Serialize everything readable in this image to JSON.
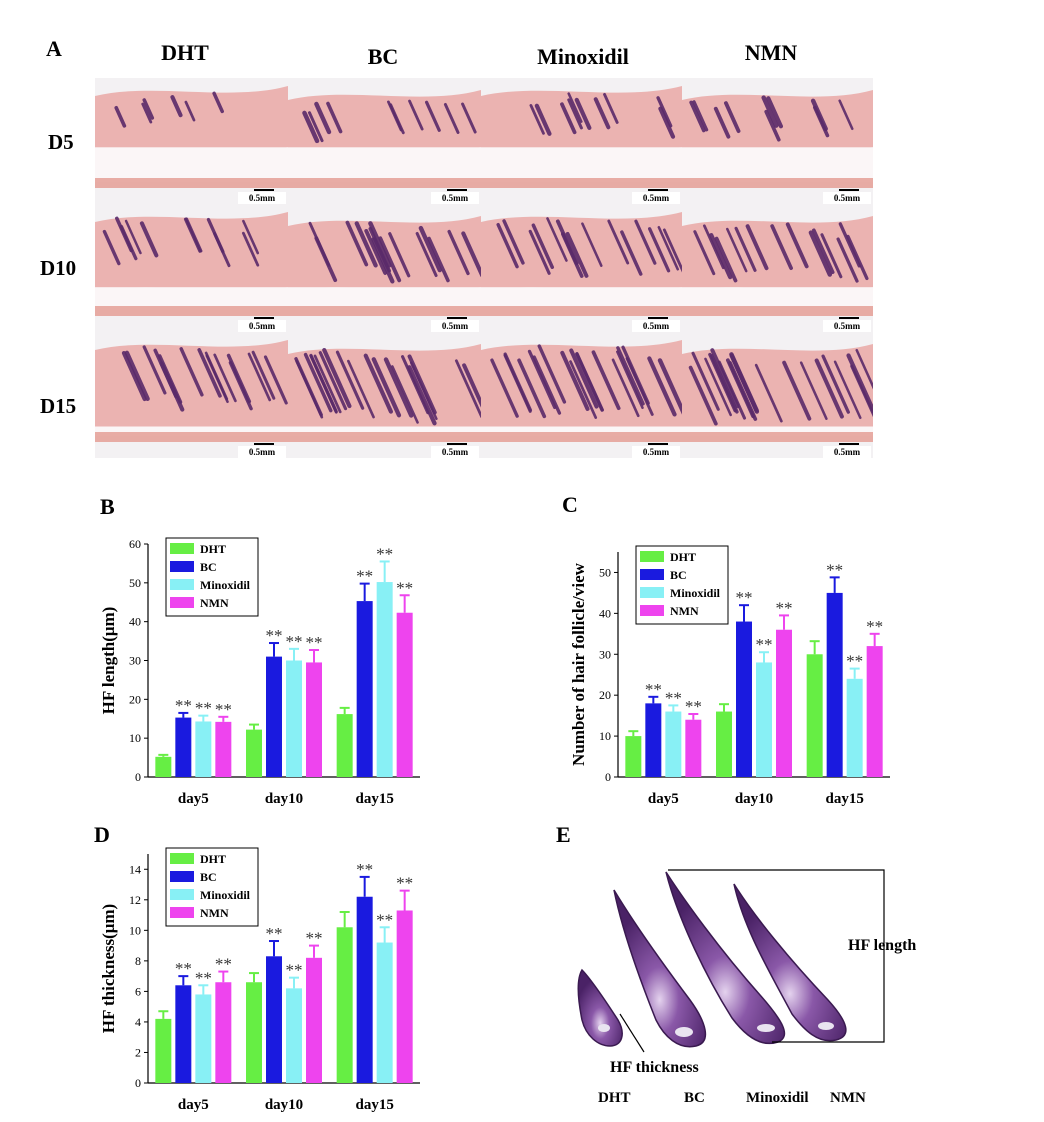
{
  "panel_a": {
    "letter": "A",
    "columns": [
      "DHT",
      "BC",
      "Minoxidil",
      "NMN"
    ],
    "rows": [
      "D5",
      "D10",
      "D15"
    ],
    "scale_bar_label": "0.5mm"
  },
  "colors": {
    "DHT": "#66ee44",
    "BC": "#1a1adf",
    "Minoxidil": "#88f0f5",
    "NMN": "#ee44ee",
    "tissue_pink": "#e9a8a4",
    "follicle_purple": "#5a2a6a"
  },
  "chart_data": [
    {
      "id": "B",
      "type": "bar",
      "ylabel": "HF length(μm)",
      "ylim": [
        0,
        60
      ],
      "yticks": [
        0,
        10,
        20,
        30,
        40,
        50,
        60
      ],
      "categories": [
        "day5",
        "day10",
        "day15"
      ],
      "legend": "top-left",
      "series": [
        {
          "name": "DHT",
          "values": [
            5.2,
            12.2,
            16.2
          ],
          "errors": [
            0.5,
            1.3,
            1.6
          ],
          "sig": [
            "",
            "",
            ""
          ]
        },
        {
          "name": "BC",
          "values": [
            15.3,
            31.0,
            45.3
          ],
          "errors": [
            1.2,
            3.5,
            4.5
          ],
          "sig": [
            "**",
            "**",
            "**"
          ]
        },
        {
          "name": "Minoxidil",
          "values": [
            14.3,
            30.0,
            50.2
          ],
          "errors": [
            1.5,
            3.0,
            5.3
          ],
          "sig": [
            "**",
            "**",
            "**"
          ]
        },
        {
          "name": "NMN",
          "values": [
            14.2,
            29.5,
            42.3
          ],
          "errors": [
            1.3,
            3.2,
            4.5
          ],
          "sig": [
            "**",
            "**",
            "**"
          ]
        }
      ]
    },
    {
      "id": "C",
      "type": "bar",
      "ylabel": "Number of hair follicle/view",
      "ylim": [
        0,
        55
      ],
      "yticks": [
        0,
        10,
        20,
        30,
        40,
        50
      ],
      "categories": [
        "day5",
        "day10",
        "day15"
      ],
      "legend": "top-left",
      "series": [
        {
          "name": "DHT",
          "values": [
            10,
            16,
            30
          ],
          "errors": [
            1.2,
            1.8,
            3.2
          ],
          "sig": [
            "",
            "",
            ""
          ]
        },
        {
          "name": "BC",
          "values": [
            18,
            38,
            45
          ],
          "errors": [
            1.6,
            4.0,
            3.8
          ],
          "sig": [
            "**",
            "**",
            "**"
          ]
        },
        {
          "name": "Minoxidil",
          "values": [
            16,
            28,
            24
          ],
          "errors": [
            1.5,
            2.5,
            2.5
          ],
          "sig": [
            "**",
            "**",
            "**"
          ]
        },
        {
          "name": "NMN",
          "values": [
            14,
            36,
            32
          ],
          "errors": [
            1.4,
            3.5,
            3.0
          ],
          "sig": [
            "**",
            "**",
            "**"
          ]
        }
      ]
    },
    {
      "id": "D",
      "type": "bar",
      "ylabel": "HF thickness(μm)",
      "ylim": [
        0,
        15
      ],
      "yticks": [
        0,
        2,
        4,
        6,
        8,
        10,
        12,
        14
      ],
      "categories": [
        "day5",
        "day10",
        "day15"
      ],
      "legend": "top-left",
      "series": [
        {
          "name": "DHT",
          "values": [
            4.2,
            6.6,
            10.2
          ],
          "errors": [
            0.5,
            0.6,
            1.0
          ],
          "sig": [
            "",
            "",
            ""
          ]
        },
        {
          "name": "BC",
          "values": [
            6.4,
            8.3,
            12.2
          ],
          "errors": [
            0.6,
            1.0,
            1.3
          ],
          "sig": [
            "**",
            "**",
            "**"
          ]
        },
        {
          "name": "Minoxidil",
          "values": [
            5.8,
            6.2,
            9.2
          ],
          "errors": [
            0.6,
            0.7,
            1.0
          ],
          "sig": [
            "**",
            "**",
            "**"
          ]
        },
        {
          "name": "NMN",
          "values": [
            6.6,
            8.2,
            11.3
          ],
          "errors": [
            0.7,
            0.8,
            1.3
          ],
          "sig": [
            "**",
            "**",
            "**"
          ]
        }
      ]
    }
  ],
  "panel_e": {
    "letter": "E",
    "length_label": "HF length",
    "thickness_label": "HF thickness",
    "labels": [
      "DHT",
      "BC",
      "Minoxidil",
      "NMN"
    ]
  }
}
